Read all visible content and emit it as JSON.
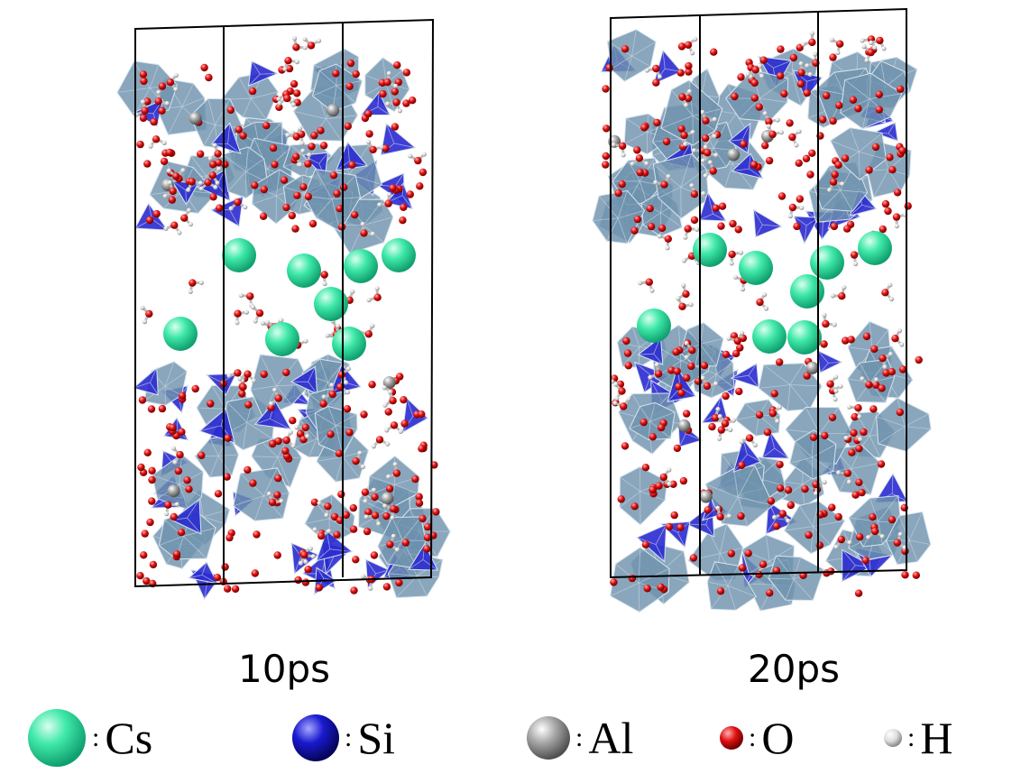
{
  "snapshots": [
    {
      "label": "10ps"
    },
    {
      "label": "20ps"
    }
  ],
  "legend": [
    {
      "symbol": "Cs",
      "color": "#2fe0a0",
      "icon": "cs-atom-sphere-icon"
    },
    {
      "symbol": "Si",
      "color": "#1a1acc",
      "icon": "si-atom-sphere-icon"
    },
    {
      "symbol": "Al",
      "color": "#9a9a9a",
      "icon": "al-atom-sphere-icon"
    },
    {
      "symbol": "O",
      "color": "#e01010",
      "icon": "o-atom-sphere-icon"
    },
    {
      "symbol": "H",
      "color": "#d8d8d8",
      "icon": "h-atom-sphere-icon"
    }
  ],
  "colors": {
    "octahedra": "#6f93ad",
    "tetrahedra": "#2a2ad0",
    "cell_edge": "#000000"
  }
}
